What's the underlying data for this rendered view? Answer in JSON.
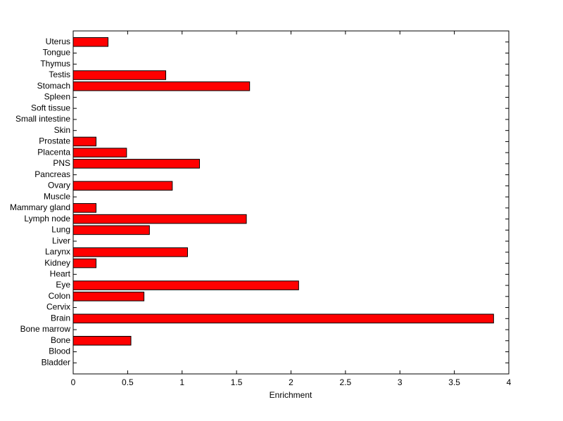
{
  "chart_data": {
    "type": "barh",
    "xlabel": "Enrichment",
    "categories": [
      "Bladder",
      "Blood",
      "Bone",
      "Bone marrow",
      "Brain",
      "Cervix",
      "Colon",
      "Eye",
      "Heart",
      "Kidney",
      "Larynx",
      "Liver",
      "Lung",
      "Lymph node",
      "Mammary gland",
      "Muscle",
      "Ovary",
      "Pancreas",
      "PNS",
      "Placenta",
      "Prostate",
      "Skin",
      "Small intestine",
      "Soft tissue",
      "Spleen",
      "Stomach",
      "Testis",
      "Thymus",
      "Tongue",
      "Uterus"
    ],
    "values": [
      0,
      0,
      0.53,
      0,
      3.86,
      0,
      0.65,
      2.07,
      0,
      0.21,
      1.05,
      0,
      0.7,
      1.59,
      0.21,
      0,
      0.91,
      0,
      1.16,
      0.49,
      0.21,
      0,
      0,
      0,
      0,
      1.62,
      0.85,
      0,
      0,
      0.32
    ],
    "color": "#ff0000",
    "xlim": [
      0,
      4
    ],
    "xticks": [
      0,
      0.5,
      1,
      1.5,
      2,
      2.5,
      3,
      3.5,
      4
    ]
  }
}
